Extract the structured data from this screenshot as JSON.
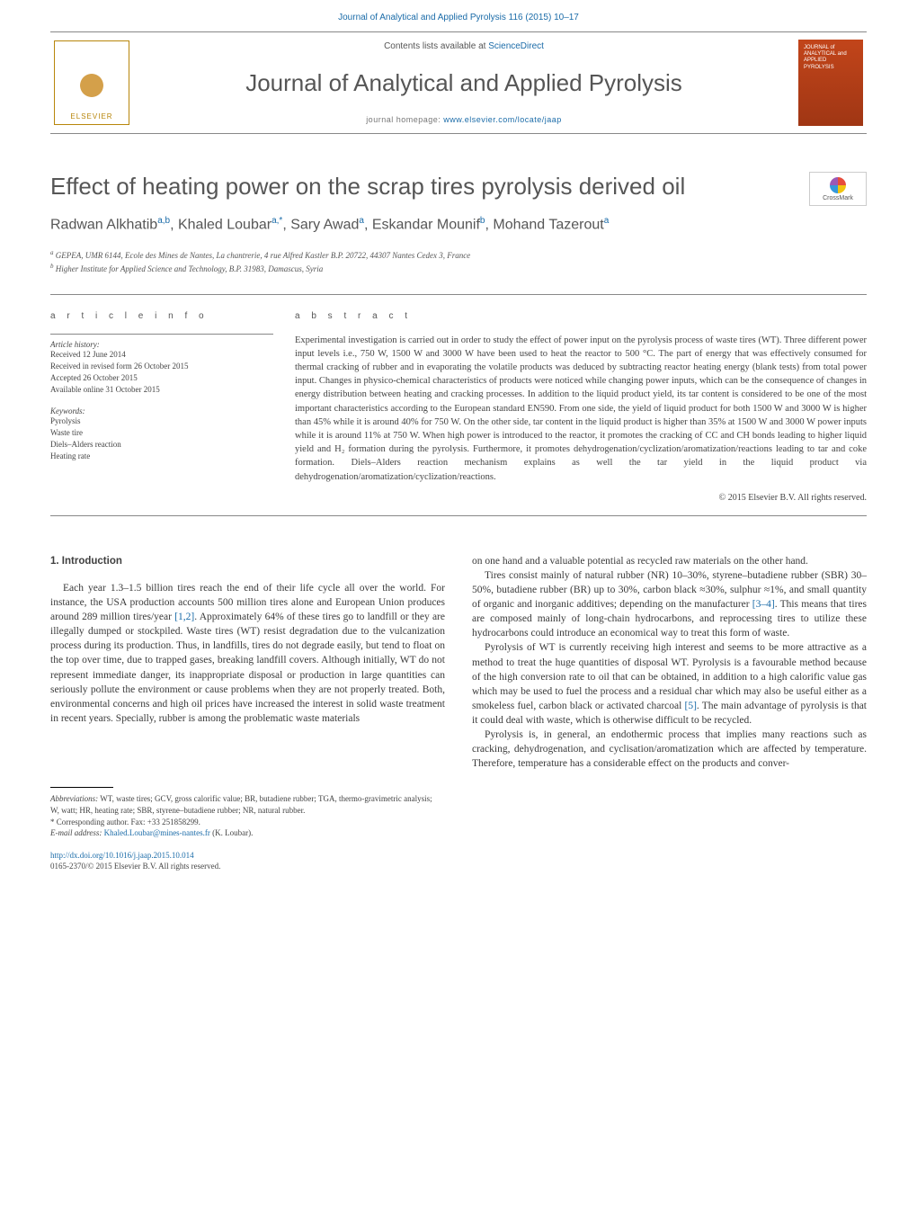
{
  "journal_ref": "Journal of Analytical and Applied Pyrolysis 116 (2015) 10–17",
  "header": {
    "contents_prefix": "Contents lists available at ",
    "contents_link": "ScienceDirect",
    "journal_name": "Journal of Analytical and Applied Pyrolysis",
    "homepage_prefix": "journal homepage: ",
    "homepage_url": "www.elsevier.com/locate/jaap",
    "publisher": "ELSEVIER",
    "cover_text_1": "JOURNAL of",
    "cover_text_2": "ANALYTICAL and",
    "cover_text_3": "APPLIED PYROLYSIS"
  },
  "crossmark_label": "CrossMark",
  "title": "Effect of heating power on the scrap tires pyrolysis derived oil",
  "authors_html": "Radwan Alkhatib<sup>a,b</sup>, Khaled Loubar<sup>a,*</sup>, Sary Awad<sup>a</sup>, Eskandar Mounif<sup>b</sup>, Mohand Tazerout<sup>a</sup>",
  "affiliations": {
    "a": "GEPEA, UMR 6144, Ecole des Mines de Nantes, La chantrerie, 4 rue Alfred Kastler B.P. 20722, 44307 Nantes Cedex 3, France",
    "b": "Higher Institute for Applied Science and Technology, B.P. 31983, Damascus, Syria"
  },
  "article_info": {
    "heading": "A R T I C L E   I N F O",
    "history_label": "Article history:",
    "received": "Received 12 June 2014",
    "revised": "Received in revised form 26 October 2015",
    "accepted": "Accepted 26 October 2015",
    "online": "Available online 31 October 2015",
    "keywords_label": "Keywords:",
    "keywords": [
      "Pyrolysis",
      "Waste tire",
      "Diels–Alders reaction",
      "Heating rate"
    ]
  },
  "abstract": {
    "heading": "A B S T R A C T",
    "body": "Experimental investigation is carried out in order to study the effect of power input on the pyrolysis process of waste tires (WT). Three different power input levels i.e., 750 W, 1500 W and 3000 W have been used to heat the reactor to 500 °C. The part of energy that was effectively consumed for thermal cracking of rubber and in evaporating the volatile products was deduced by subtracting reactor heating energy (blank tests) from total power input. Changes in physico-chemical characteristics of products were noticed while changing power inputs, which can be the consequence of changes in energy distribution between heating and cracking processes. In addition to the liquid product yield, its tar content is considered to be one of the most important characteristics according to the European standard EN590. From one side, the yield of liquid product for both 1500 W and 3000 W is higher than 45% while it is around 40% for 750 W. On the other side, tar content in the liquid product is higher than 35% at 1500 W and 3000 W power inputs while it is around 11% at 750 W. When high power is introduced to the reactor, it promotes the cracking of CC and CH bonds leading to higher liquid yield and H₂ formation during the pyrolysis. Furthermore, it promotes dehydrogenation/cyclization/aromatization/reactions leading to tar and coke formation. Diels–Alders reaction mechanism explains as well the tar yield in the liquid product via dehydrogenation/aromatization/cyclization/reactions.",
    "copyright": "© 2015 Elsevier B.V. All rights reserved."
  },
  "body": {
    "section_num": "1.",
    "section_title": "Introduction",
    "col1_p1": "Each year 1.3–1.5 billion tires reach the end of their life cycle all over the world. For instance, the USA production accounts 500 million tires alone and European Union produces around 289 million tires/year [1,2]. Approximately 64% of these tires go to landfill or they are illegally dumped or stockpiled. Waste tires (WT) resist degradation due to the vulcanization process during its production. Thus, in landfills, tires do not degrade easily, but tend to float on the top over time, due to trapped gases, breaking landfill covers. Although initially, WT do not represent immediate danger, its inappropriate disposal or production in large quantities can seriously pollute the environment or cause problems when they are not properly treated. Both, environmental concerns and high oil prices have increased the interest in solid waste treatment in recent years. Specially, rubber is among the problematic waste materials",
    "col2_p1": "on one hand and a valuable potential as recycled raw materials on the other hand.",
    "col2_p2": "Tires consist mainly of natural rubber (NR) 10–30%, styrene–butadiene rubber (SBR) 30–50%, butadiene rubber (BR) up to 30%, carbon black ≈30%, sulphur ≈1%, and small quantity of organic and inorganic additives; depending on the manufacturer [3–4]. This means that tires are composed mainly of long-chain hydrocarbons, and reprocessing tires to utilize these hydrocarbons could introduce an economical way to treat this form of waste.",
    "col2_p3": "Pyrolysis of WT is currently receiving high interest and seems to be more attractive as a method to treat the huge quantities of disposal WT. Pyrolysis is a favourable method because of the high conversion rate to oil that can be obtained, in addition to a high calorific value gas which may be used to fuel the process and a residual char which may also be useful either as a smokeless fuel, carbon black or activated charcoal [5]. The main advantage of pyrolysis is that it could deal with waste, which is otherwise difficult to be recycled.",
    "col2_p4": "Pyrolysis is, in general, an endothermic process that implies many reactions such as cracking, dehydrogenation, and cyclisation/aromatization which are affected by temperature. Therefore, temperature has a considerable effect on the products and conver-"
  },
  "footnotes": {
    "abbrev_label": "Abbreviations:",
    "abbrev": "WT, waste tires; GCV, gross calorific value; BR, butadiene rubber; TGA, thermo-gravimetric analysis; W, watt; HR, heating rate; SBR, styrene–butadiene rubber; NR, natural rubber.",
    "corr_label": "* Corresponding author. Fax: +33 251858299.",
    "email_label": "E-mail address:",
    "email": "Khaled.Loubar@mines-nantes.fr",
    "email_suffix": "(K. Loubar)."
  },
  "doi": {
    "url": "http://dx.doi.org/10.1016/j.jaap.2015.10.014",
    "issn_line": "0165-2370/© 2015 Elsevier B.V. All rights reserved."
  },
  "colors": {
    "link": "#1a6ba8",
    "text": "#3a3a3a",
    "heading": "#565656",
    "elsevier": "#b8860b",
    "cover": "#c2451a"
  }
}
